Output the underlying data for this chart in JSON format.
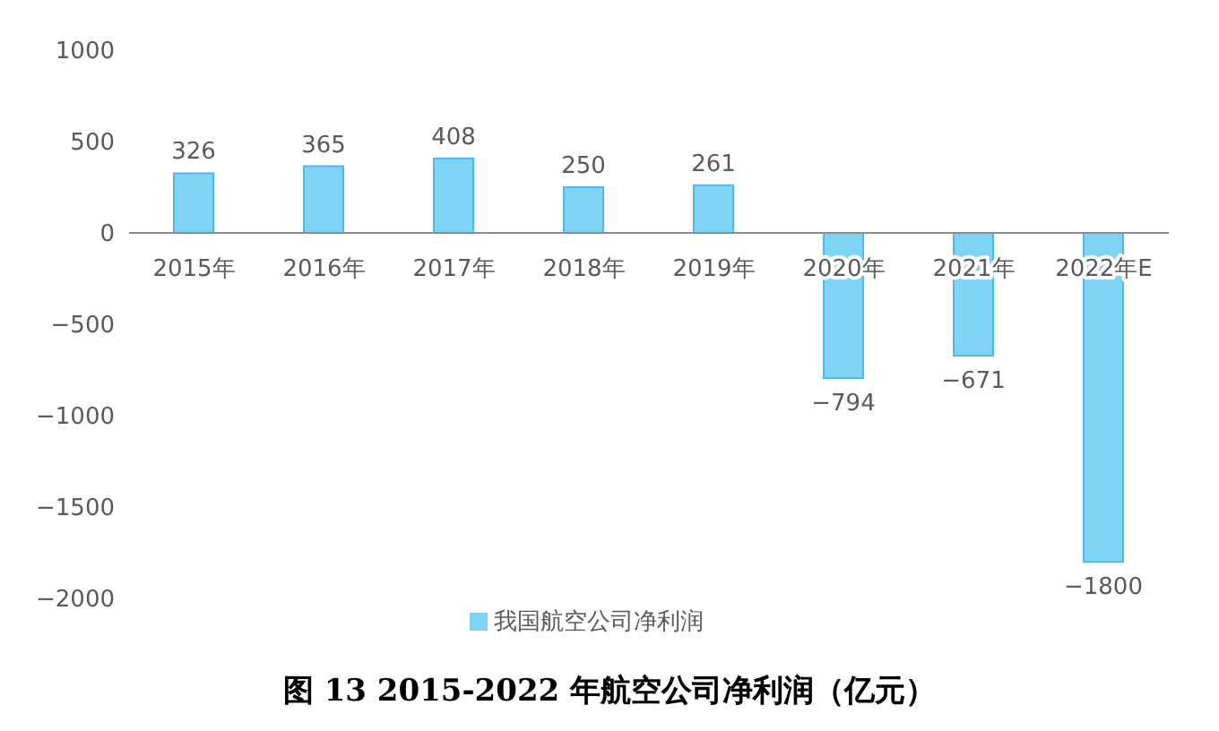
{
  "chart_data": {
    "type": "bar",
    "title": "图 13 2015-2022 年航空公司净利润（亿元）",
    "categories": [
      "2015年",
      "2016年",
      "2017年",
      "2018年",
      "2019年",
      "2020年",
      "2021年",
      "2022年E"
    ],
    "series": [
      {
        "name": "我国航空公司净利润",
        "color": "#7fd4f6",
        "values": [
          326,
          365,
          408,
          250,
          261,
          -794,
          -671,
          -1800
        ]
      }
    ],
    "ylim": [
      -2000,
      1000
    ],
    "yticks": [
      1000,
      500,
      0,
      -500,
      -1000,
      -1500,
      -2000
    ],
    "legend": "bottom",
    "data_labels": true
  }
}
